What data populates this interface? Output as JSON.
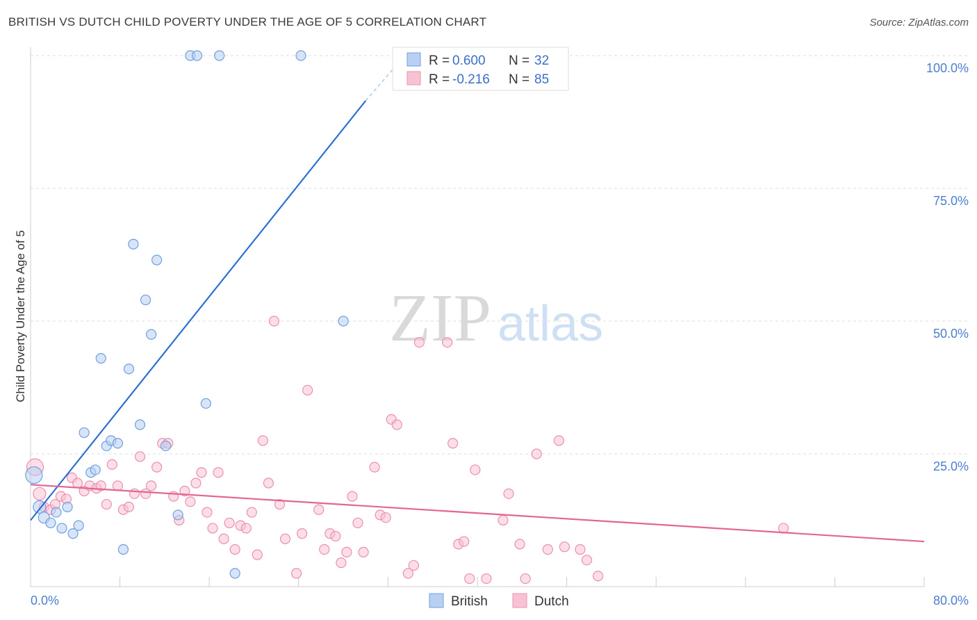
{
  "title": "BRITISH VS DUTCH CHILD POVERTY UNDER THE AGE OF 5 CORRELATION CHART",
  "source": "Source: ZipAtlas.com",
  "watermark": {
    "zip": "ZIP",
    "atlas": "atlas"
  },
  "colors": {
    "british_fill": "#b8d0f2",
    "british_stroke": "#6f9fe0",
    "british_line": "#2d6fd0",
    "dutch_fill": "#f7c3d4",
    "dutch_stroke": "#ec8fae",
    "dutch_line": "#e2668f",
    "axis_text": "#4a7fd0",
    "grid": "#dddddd"
  },
  "legend_top": [
    {
      "r_label": "R =",
      "r_value": "0.600",
      "n_label": "N =",
      "n_value": "32"
    },
    {
      "r_label": "R =",
      "r_value": "-0.216",
      "n_label": "N =",
      "n_value": "85"
    }
  ],
  "legend_bottom": [
    "British",
    "Dutch"
  ],
  "chart_data": {
    "type": "scatter",
    "title": "BRITISH VS DUTCH CHILD POVERTY UNDER THE AGE OF 5 CORRELATION CHART",
    "xlabel": "",
    "ylabel": "Child Poverty Under the Age of 5",
    "xlim": [
      0,
      80
    ],
    "ylim": [
      0,
      100
    ],
    "x_tick_labels": [
      "0.0%",
      "80.0%"
    ],
    "y_tick_labels": [
      "100.0%",
      "75.0%",
      "50.0%",
      "25.0%"
    ],
    "y_ticks": [
      100,
      75,
      50,
      25
    ],
    "grid": true,
    "legend_position": "top-center",
    "series": [
      {
        "name": "British",
        "r": 0.6,
        "n": 32,
        "trend": {
          "x": [
            0,
            30
          ],
          "y": [
            12.5,
            91.5
          ],
          "dashed_to": [
            33.5,
            100
          ]
        },
        "points": [
          [
            0.3,
            21,
            12
          ],
          [
            0.8,
            15,
            9
          ],
          [
            1.2,
            13,
            8
          ],
          [
            1.8,
            12,
            7
          ],
          [
            2.3,
            14,
            7
          ],
          [
            2.8,
            11,
            7
          ],
          [
            3.3,
            15,
            7
          ],
          [
            3.8,
            10,
            7
          ],
          [
            4.3,
            11.5,
            7
          ],
          [
            4.8,
            29,
            7
          ],
          [
            5.4,
            21.5,
            7
          ],
          [
            5.8,
            22,
            7
          ],
          [
            6.3,
            43,
            7
          ],
          [
            6.8,
            26.5,
            7
          ],
          [
            7.2,
            27.5,
            7
          ],
          [
            7.8,
            27,
            7
          ],
          [
            8.3,
            7,
            7
          ],
          [
            8.8,
            41,
            7
          ],
          [
            9.2,
            64.5,
            7
          ],
          [
            9.8,
            30.5,
            7
          ],
          [
            10.3,
            54,
            7
          ],
          [
            10.8,
            47.5,
            7
          ],
          [
            11.3,
            61.5,
            7
          ],
          [
            12.1,
            26.5,
            7
          ],
          [
            13.2,
            13.5,
            7
          ],
          [
            14.3,
            100,
            7
          ],
          [
            14.9,
            100,
            7
          ],
          [
            15.7,
            34.5,
            7
          ],
          [
            16.9,
            100,
            7
          ],
          [
            18.3,
            2.5,
            7
          ],
          [
            24.2,
            100,
            7
          ],
          [
            28.0,
            50,
            7
          ]
        ]
      },
      {
        "name": "Dutch",
        "r": -0.216,
        "n": 85,
        "trend": {
          "x": [
            0,
            80
          ],
          "y": [
            19.2,
            8.5
          ]
        },
        "points": [
          [
            0.4,
            22.5,
            12
          ],
          [
            0.8,
            17.5,
            9
          ],
          [
            1.2,
            15,
            7
          ],
          [
            1.8,
            14.5,
            7
          ],
          [
            2.2,
            15.5,
            7
          ],
          [
            2.7,
            17,
            7
          ],
          [
            3.2,
            16.5,
            7
          ],
          [
            3.7,
            20.5,
            7
          ],
          [
            4.2,
            19.5,
            7
          ],
          [
            4.8,
            18,
            7
          ],
          [
            5.3,
            19,
            7
          ],
          [
            5.9,
            18.5,
            7
          ],
          [
            6.3,
            19,
            7
          ],
          [
            6.8,
            15.5,
            7
          ],
          [
            7.3,
            23,
            7
          ],
          [
            7.8,
            19,
            7
          ],
          [
            8.3,
            14.5,
            7
          ],
          [
            8.8,
            15,
            7
          ],
          [
            9.3,
            17.5,
            7
          ],
          [
            9.8,
            24.5,
            7
          ],
          [
            10.3,
            17.5,
            7
          ],
          [
            10.8,
            19,
            7
          ],
          [
            11.3,
            22.5,
            7
          ],
          [
            11.8,
            27,
            7
          ],
          [
            12.3,
            27,
            7
          ],
          [
            12.8,
            17,
            7
          ],
          [
            13.3,
            12.5,
            7
          ],
          [
            13.8,
            18,
            7
          ],
          [
            14.3,
            16,
            7
          ],
          [
            14.8,
            19.5,
            7
          ],
          [
            15.3,
            21.5,
            7
          ],
          [
            15.8,
            14,
            7
          ],
          [
            16.3,
            11,
            7
          ],
          [
            16.8,
            21.5,
            7
          ],
          [
            17.3,
            9,
            7
          ],
          [
            17.8,
            12,
            7
          ],
          [
            18.3,
            7,
            7
          ],
          [
            18.8,
            11.5,
            7
          ],
          [
            19.3,
            11,
            7
          ],
          [
            19.8,
            14,
            7
          ],
          [
            20.3,
            6,
            7
          ],
          [
            20.8,
            27.5,
            7
          ],
          [
            21.3,
            19.5,
            7
          ],
          [
            21.8,
            50,
            7
          ],
          [
            22.3,
            15.5,
            7
          ],
          [
            22.8,
            9,
            7
          ],
          [
            23.8,
            2.5,
            7
          ],
          [
            24.3,
            10,
            7
          ],
          [
            24.8,
            37,
            7
          ],
          [
            25.8,
            14.5,
            7
          ],
          [
            26.3,
            7,
            7
          ],
          [
            26.8,
            10,
            7
          ],
          [
            27.3,
            9.5,
            7
          ],
          [
            27.8,
            4.5,
            7
          ],
          [
            28.3,
            6.5,
            7
          ],
          [
            28.8,
            17,
            7
          ],
          [
            29.3,
            12,
            7
          ],
          [
            29.8,
            6.5,
            7
          ],
          [
            30.8,
            22.5,
            7
          ],
          [
            31.3,
            13.5,
            7
          ],
          [
            31.8,
            13,
            7
          ],
          [
            32.3,
            31.5,
            7
          ],
          [
            32.8,
            30.5,
            7
          ],
          [
            33.8,
            2.5,
            7
          ],
          [
            34.3,
            4,
            7
          ],
          [
            34.8,
            46,
            7
          ],
          [
            37.3,
            46,
            7
          ],
          [
            37.8,
            27,
            7
          ],
          [
            38.3,
            8,
            7
          ],
          [
            38.8,
            8.5,
            7
          ],
          [
            39.3,
            1.5,
            7
          ],
          [
            39.8,
            22,
            7
          ],
          [
            40.8,
            1.5,
            7
          ],
          [
            42.3,
            12.5,
            7
          ],
          [
            42.8,
            17.5,
            7
          ],
          [
            43.8,
            8,
            7
          ],
          [
            44.3,
            1.5,
            7
          ],
          [
            45.3,
            25,
            7
          ],
          [
            46.3,
            7,
            7
          ],
          [
            47.3,
            27.5,
            7
          ],
          [
            47.8,
            7.5,
            7
          ],
          [
            49.2,
            7,
            7
          ],
          [
            49.8,
            5,
            7
          ],
          [
            50.8,
            2,
            7
          ],
          [
            67.4,
            11,
            7
          ]
        ]
      }
    ]
  }
}
